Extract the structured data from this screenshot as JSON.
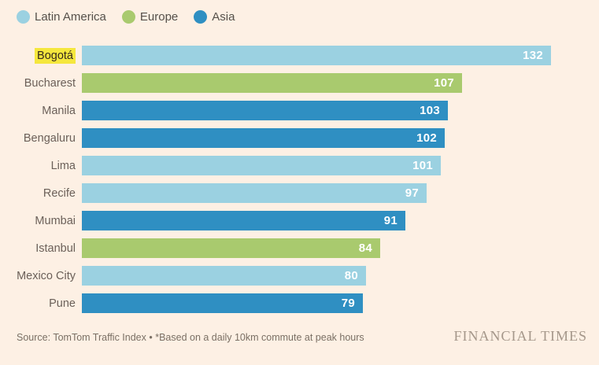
{
  "legend": [
    {
      "label": "Latin America",
      "color": "#9BD1E1"
    },
    {
      "label": "Europe",
      "color": "#A9CA6E"
    },
    {
      "label": "Asia",
      "color": "#2F8FC2"
    }
  ],
  "chart_data": {
    "type": "bar",
    "orientation": "horizontal",
    "categories": [
      "Bogotá",
      "Bucharest",
      "Manila",
      "Bengaluru",
      "Lima",
      "Recife",
      "Mumbai",
      "Istanbul",
      "Mexico City",
      "Pune"
    ],
    "values": [
      132,
      107,
      103,
      102,
      101,
      97,
      91,
      84,
      80,
      79
    ],
    "regions": [
      "Latin America",
      "Europe",
      "Asia",
      "Asia",
      "Latin America",
      "Latin America",
      "Asia",
      "Europe",
      "Latin America",
      "Asia"
    ],
    "highlighted_category": "Bogotá",
    "highlight_color": "#F5E73D",
    "value_labels_shown": true,
    "xlim": [
      0,
      132
    ],
    "grid": false,
    "legend_position": "top"
  },
  "region_colors": {
    "Latin America": "#9BD1E1",
    "Europe": "#A9CA6E",
    "Asia": "#2F8FC2"
  },
  "footer": {
    "source": "Source: TomTom Traffic Index • *Based on a daily 10km commute at peak hours",
    "brand": "FINANCIAL TIMES"
  },
  "colors": {
    "background": "#FDF0E4",
    "bar_value_text": "#FFFFFF",
    "label_text": "#6B6059",
    "source_text": "#7A6F64",
    "brand_text": "#A5978A"
  }
}
